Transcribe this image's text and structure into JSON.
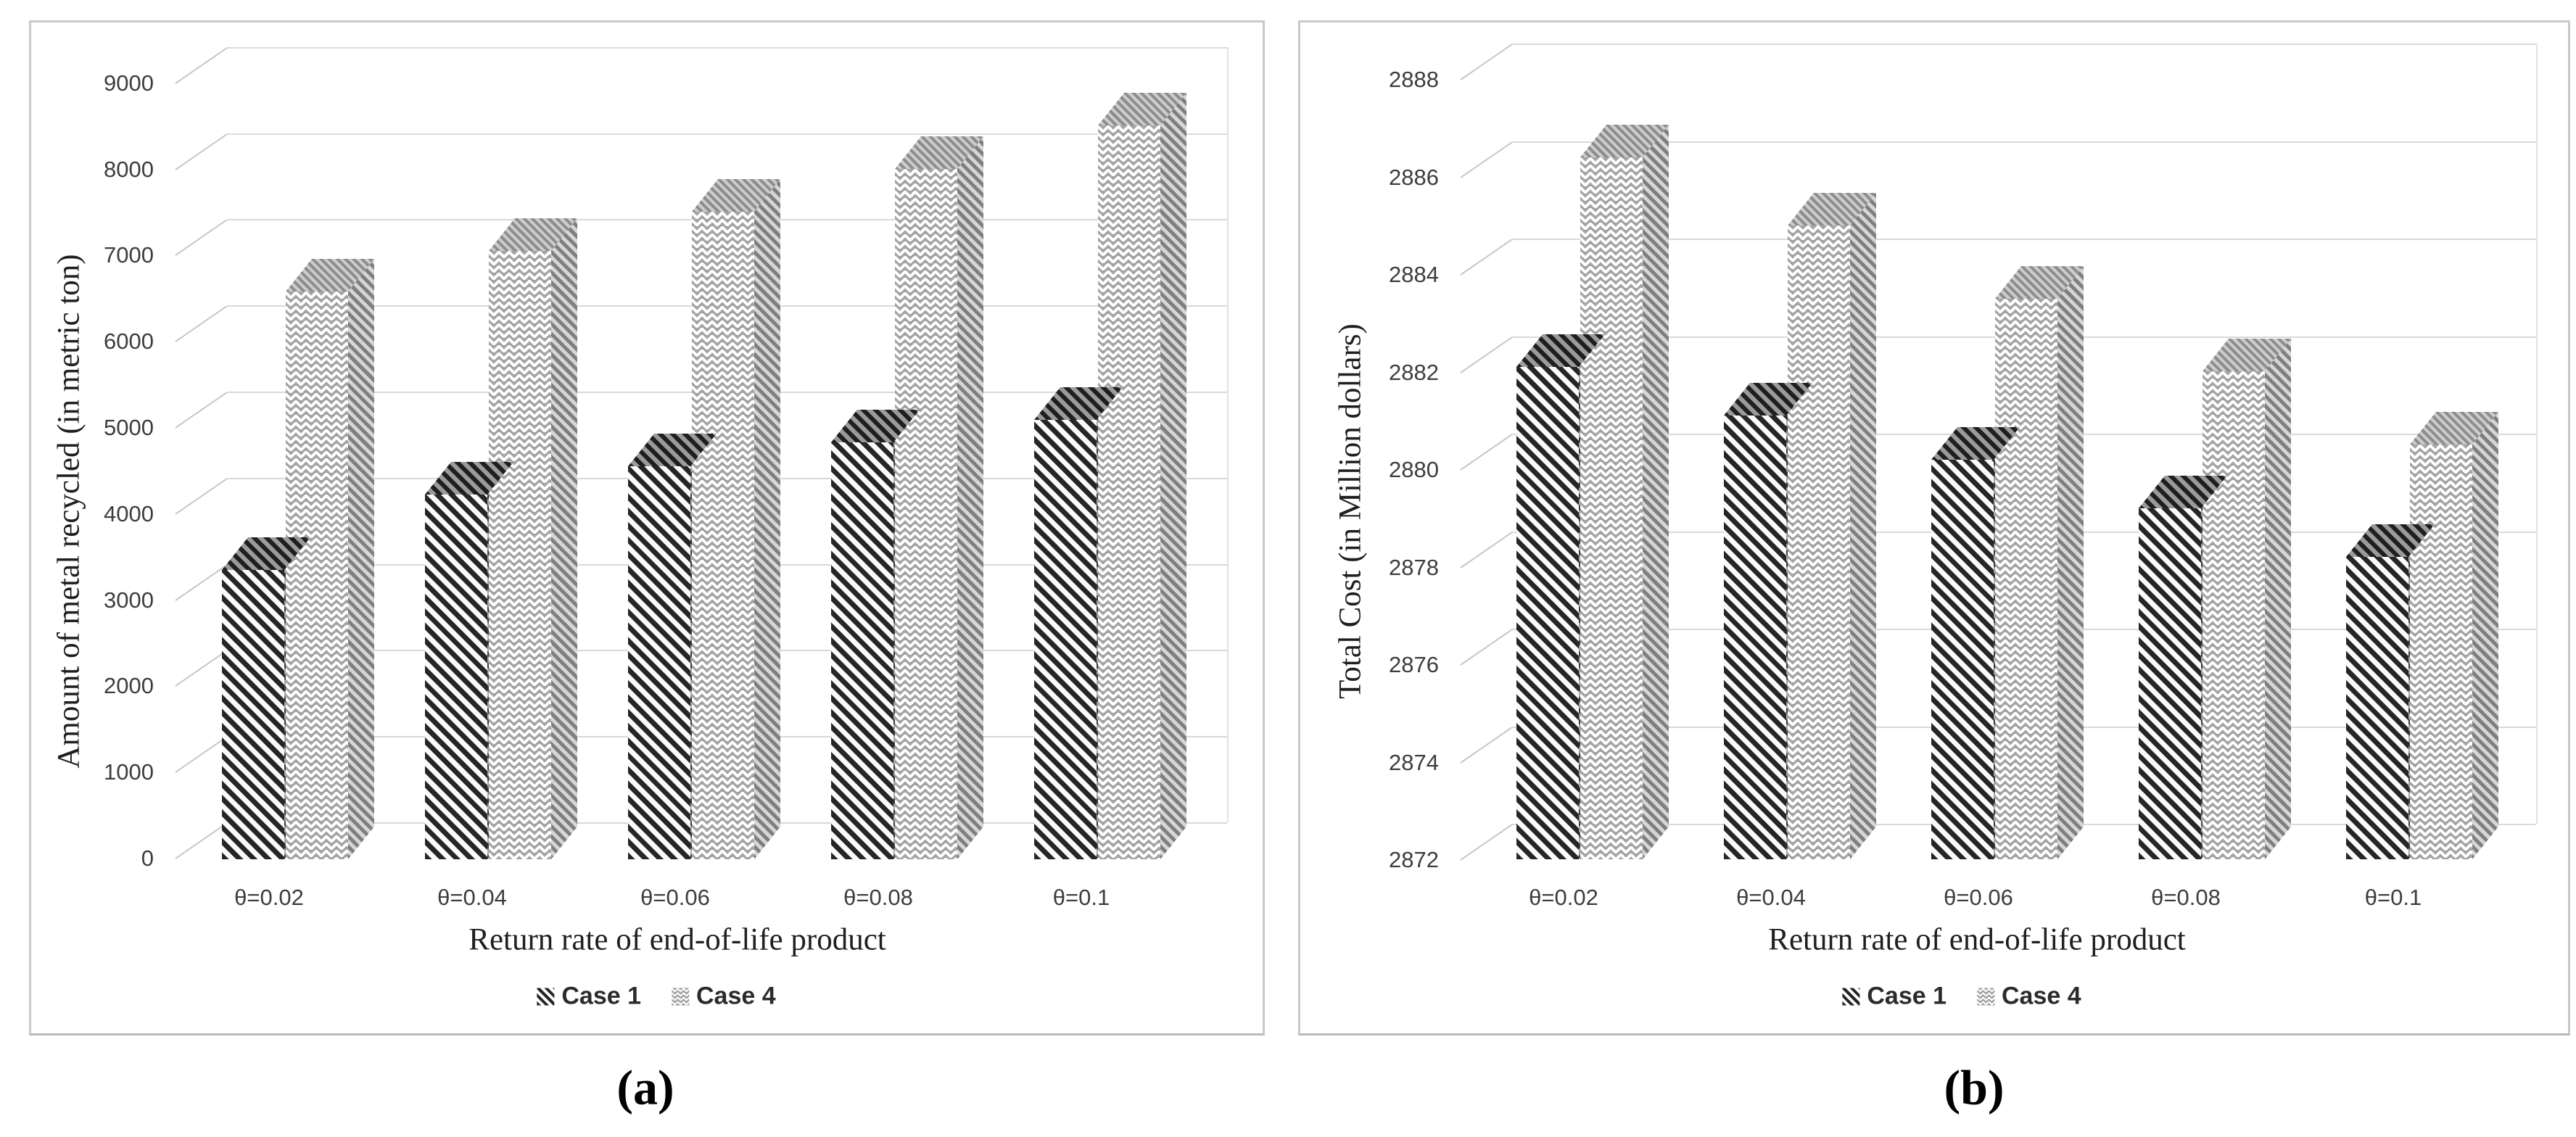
{
  "chart_data": [
    {
      "type": "bar",
      "panel": "left",
      "caption": "(a)",
      "title": "",
      "xlabel": "Return rate of end-of-life product",
      "ylabel": "Amount of metal recycled (in metric ton)",
      "categories": [
        "θ=0.02",
        "θ=0.04",
        "θ=0.06",
        "θ=0.08",
        "θ=0.1"
      ],
      "series": [
        {
          "name": "Case 1",
          "pattern": "dark-diagonal-stripes",
          "values": [
            3360,
            4230,
            4560,
            4840,
            5100
          ]
        },
        {
          "name": "Case 4",
          "pattern": "light-gray-zigzag",
          "values": [
            6590,
            7060,
            7520,
            8010,
            8520
          ]
        }
      ],
      "ylim": [
        0,
        9000
      ],
      "ytick_step": 1000,
      "yticks": [
        0,
        1000,
        2000,
        3000,
        4000,
        5000,
        6000,
        7000,
        8000,
        9000
      ],
      "grid": true,
      "legend_position": "bottom",
      "style": "3d-clustered-column"
    },
    {
      "type": "bar",
      "panel": "right",
      "caption": "(b)",
      "title": "",
      "xlabel": "Return rate of end-of-life product",
      "ylabel": "Total Cost (in Million dollars)",
      "categories": [
        "θ=0.02",
        "θ=0.04",
        "θ=0.06",
        "θ=0.08",
        "θ=0.1"
      ],
      "series": [
        {
          "name": "Case 1",
          "pattern": "dark-diagonal-stripes",
          "values": [
            2882.1,
            2881.1,
            2880.2,
            2879.2,
            2878.2
          ]
        },
        {
          "name": "Case 4",
          "pattern": "light-gray-zigzag",
          "values": [
            2886.4,
            2885.0,
            2883.5,
            2882.0,
            2880.5
          ]
        }
      ],
      "ylim": [
        2872,
        2888
      ],
      "ytick_step": 2,
      "yticks": [
        2872,
        2874,
        2876,
        2878,
        2880,
        2882,
        2884,
        2886,
        2888
      ],
      "grid": true,
      "legend_position": "bottom",
      "style": "3d-clustered-column"
    }
  ]
}
